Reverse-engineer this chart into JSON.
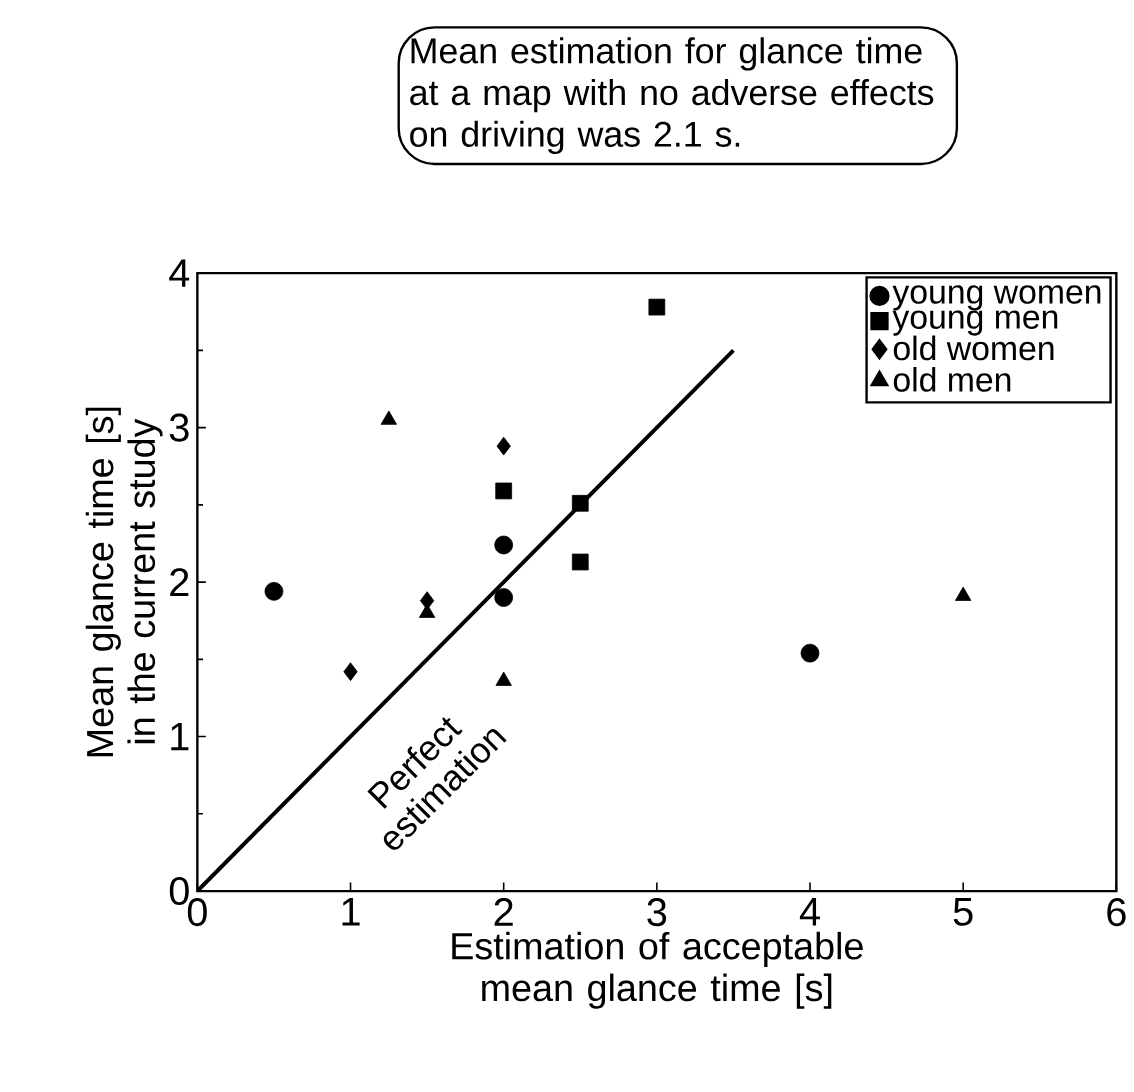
{
  "chart_data": {
    "type": "scatter",
    "title": "Mean estimation for glance time at a map with no adverse effects on driving was 2.1 s.",
    "xlabel": "Estimation of acceptable mean glance time [s]",
    "ylabel": "Mean glance time [s] in the current study",
    "xlim": [
      0,
      6
    ],
    "ylim": [
      0,
      4
    ],
    "xticks": [
      0,
      1,
      2,
      3,
      4,
      5,
      6
    ],
    "yticks": [
      0,
      1,
      2,
      3,
      4
    ],
    "legend": "top right",
    "grid": false,
    "series": [
      {
        "name": "young women",
        "color": "#000000",
        "marker": "circle",
        "x": [
          0.5,
          2,
          2,
          4
        ],
        "values": [
          1.94,
          2.24,
          1.9,
          1.54
        ]
      },
      {
        "name": "young men",
        "color": "#000000",
        "marker": "square",
        "x": [
          3,
          2,
          2.5,
          2.5
        ],
        "values": [
          3.78,
          2.59,
          2.51,
          2.13
        ]
      },
      {
        "name": "old women",
        "color": "#000000",
        "marker": "diamond",
        "x": [
          1,
          1.5,
          2
        ],
        "values": [
          1.42,
          1.88,
          2.88
        ]
      },
      {
        "name": "old men",
        "color": "#000000",
        "marker": "triangle",
        "x": [
          1.25,
          1.5,
          2,
          5
        ],
        "values": [
          3.05,
          1.8,
          1.36,
          1.91
        ]
      },
      {
        "name": "Perfect estimation",
        "type": "line",
        "color": "#000000",
        "marker": "none",
        "line_style": "solid",
        "x": [
          0,
          3.5
        ],
        "values": [
          0,
          3.5
        ]
      }
    ]
  }
}
